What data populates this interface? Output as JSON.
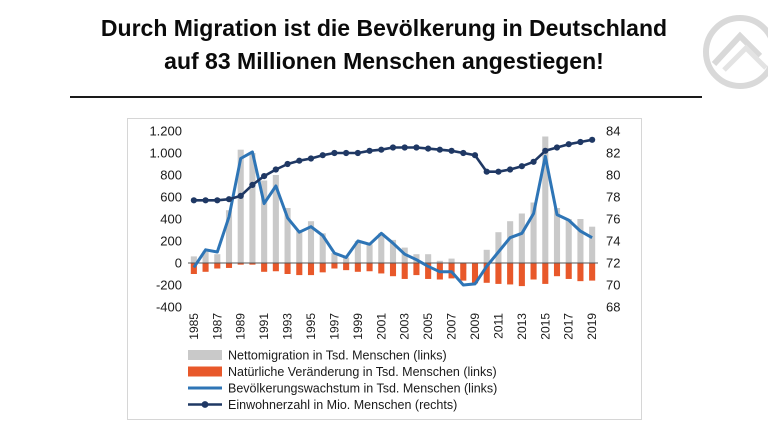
{
  "page": {
    "title_line1": "Durch Migration ist die Bevölkerung in Deutschland",
    "title_line2": "auf 83 Millionen Menschen angestiegen!"
  },
  "colors": {
    "migration": "#c9c9c9",
    "natural": "#e8582a",
    "growth": "#2e75b6",
    "population": "#1f3864",
    "axis": "#555555"
  },
  "chart_data": {
    "type": "bar",
    "x": [
      1985,
      1986,
      1987,
      1988,
      1989,
      1990,
      1991,
      1992,
      1993,
      1994,
      1995,
      1996,
      1997,
      1998,
      1999,
      2000,
      2001,
      2002,
      2003,
      2004,
      2005,
      2006,
      2007,
      2008,
      2009,
      2010,
      2011,
      2012,
      2013,
      2014,
      2015,
      2016,
      2017,
      2018,
      2019
    ],
    "x_tick_labels": [
      "1985",
      "1987",
      "1989",
      "1991",
      "1993",
      "1995",
      "1997",
      "1999",
      "2001",
      "2003",
      "2005",
      "2007",
      "2009",
      "2011",
      "2013",
      "2015",
      "2017",
      "2019"
    ],
    "y_left": {
      "ylim": [
        -400,
        1200
      ],
      "ticks": [
        -400,
        -200,
        0,
        200,
        400,
        600,
        800,
        1000,
        1200
      ],
      "tick_labels": [
        "-400",
        "-200",
        "0",
        "200",
        "400",
        "600",
        "800",
        "1.000",
        "1.200"
      ]
    },
    "y_right": {
      "ylim": [
        68,
        84
      ],
      "ticks": [
        68,
        70,
        72,
        74,
        76,
        78,
        80,
        82,
        84
      ],
      "tick_labels": [
        "68",
        "70",
        "72",
        "74",
        "76",
        "78",
        "80",
        "82",
        "84"
      ]
    },
    "series": [
      {
        "name": "Nettomigration in Tsd. Menschen (links)",
        "kind": "bar",
        "axis": "left",
        "values": [
          60,
          110,
          80,
          480,
          1030,
          1000,
          750,
          800,
          500,
          300,
          380,
          270,
          90,
          50,
          200,
          170,
          270,
          210,
          140,
          80,
          80,
          20,
          40,
          -60,
          0,
          120,
          280,
          380,
          450,
          550,
          1150,
          500,
          400,
          400,
          330
        ]
      },
      {
        "name": "Natürliche Veränderung in Tsd. Menschen (links)",
        "kind": "bar",
        "axis": "left",
        "values": [
          -100,
          -80,
          -50,
          -45,
          -15,
          -15,
          -80,
          -75,
          -100,
          -110,
          -110,
          -85,
          -50,
          -65,
          -80,
          -75,
          -95,
          -120,
          -145,
          -110,
          -145,
          -150,
          -140,
          -160,
          -185,
          -180,
          -190,
          -195,
          -210,
          -150,
          -190,
          -120,
          -145,
          -165,
          -160
        ]
      },
      {
        "name": "Bevölkerungswachstum in Tsd. Menschen (links)",
        "kind": "line",
        "axis": "left",
        "values": [
          -40,
          120,
          100,
          420,
          950,
          1010,
          540,
          700,
          410,
          280,
          330,
          250,
          90,
          50,
          200,
          170,
          270,
          180,
          80,
          30,
          -30,
          -80,
          -80,
          -200,
          -190,
          -30,
          100,
          230,
          270,
          450,
          970,
          440,
          390,
          290,
          230
        ]
      },
      {
        "name": "Einwohnerzahl in Mio. Menschen (rechts)",
        "kind": "line-markers",
        "axis": "right",
        "values": [
          77.7,
          77.7,
          77.7,
          77.8,
          78.1,
          79.1,
          79.9,
          80.5,
          81.0,
          81.3,
          81.5,
          81.8,
          82.0,
          82.0,
          82.0,
          82.2,
          82.3,
          82.5,
          82.5,
          82.5,
          82.4,
          82.3,
          82.2,
          82.0,
          81.8,
          80.3,
          80.3,
          80.5,
          80.8,
          81.2,
          82.2,
          82.5,
          82.8,
          83.0,
          83.2
        ]
      }
    ],
    "legend_placement": "bottom",
    "grid": false
  }
}
